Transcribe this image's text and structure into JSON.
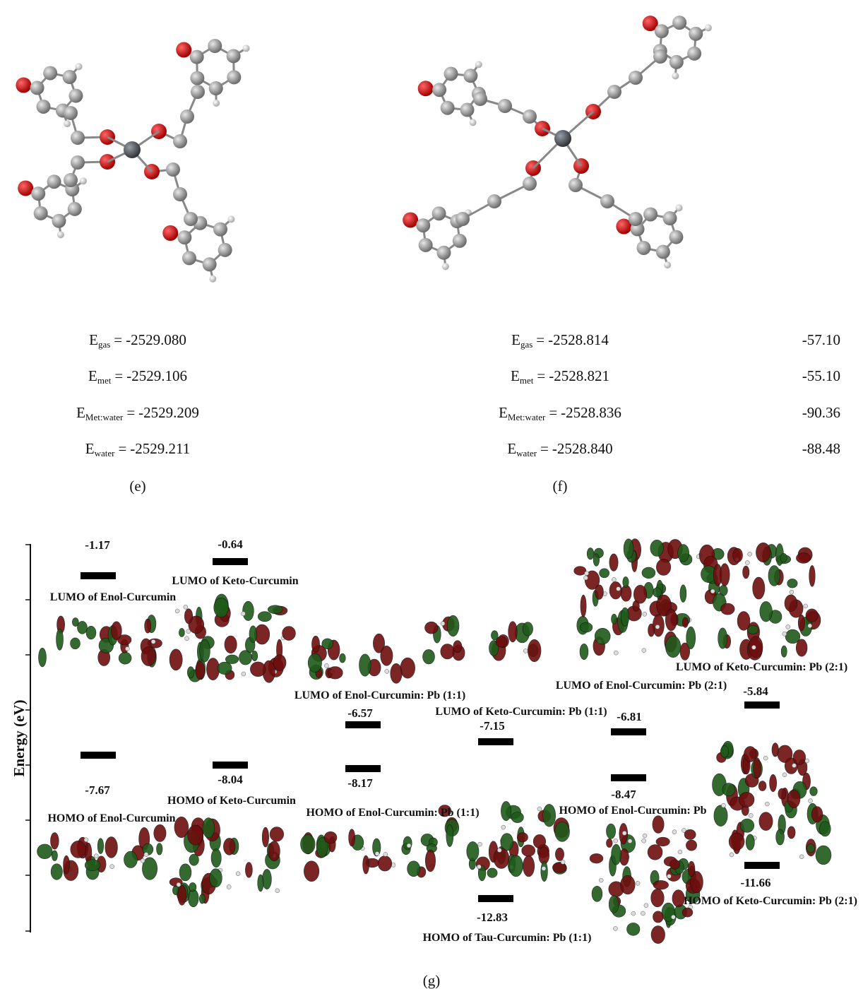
{
  "panel_e": {
    "energies": [
      {
        "label": "E",
        "subscript": "gas",
        "relation": "=",
        "value": "-2529.080"
      },
      {
        "label": "E",
        "subscript": "met",
        "relation": "=",
        "value": "-2529.106"
      },
      {
        "label": "E",
        "subscript": "Met:water",
        "relation": "=",
        "value": "-2529.209"
      },
      {
        "label": "E",
        "subscript": "water",
        "relation": "=",
        "value": "-2529.211"
      }
    ],
    "caption": "(e)"
  },
  "panel_f": {
    "energies": [
      {
        "label": "E",
        "subscript": "gas",
        "relation": "=",
        "value": "-2528.814",
        "extra": "-57.10"
      },
      {
        "label": "E",
        "subscript": "met",
        "relation": "=",
        "value": "-2528.821",
        "extra": "-55.10"
      },
      {
        "label": "E",
        "subscript": "Met:water",
        "relation": "=",
        "value": "-2528.836",
        "extra": "-90.36"
      },
      {
        "label": "E",
        "subscript": "water",
        "relation": "=",
        "value": "-2528.840",
        "extra": "-88.48"
      }
    ],
    "caption": "(f)"
  },
  "panel_g": {
    "axis_label": "Energy (eV)",
    "levels": [
      {
        "value": "-1.17",
        "label": "LUMO of Enol-Curcumin"
      },
      {
        "value": "-0.64",
        "label": "LUMO of Keto-Curcumin"
      },
      {
        "value": "-6.57",
        "label": "LUMO of Enol-Curcumin: Pb (1:1)"
      },
      {
        "value": "-7.15",
        "label": "LUMO of Keto-Curcumin: Pb (1:1)"
      },
      {
        "value": "-6.81",
        "label": "LUMO of Enol-Curcumin: Pb (2:1)"
      },
      {
        "value": "-5.84",
        "label": "LUMO of Keto-Curcumin: Pb (2:1)"
      },
      {
        "value": "-7.67",
        "label": "HOMO of Enol-Curcumin"
      },
      {
        "value": "-8.04",
        "label": "HOMO of Keto-Curcumin"
      },
      {
        "value": "-8.17",
        "label": "HOMO of Enol-Curcumin: Pb (1:1)"
      },
      {
        "value": "-12.83",
        "label": "HOMO of Tau-Curcumin: Pb (1:1)"
      },
      {
        "value": "-8.47",
        "label": "HOMO of Enol-Curcumin: Pb"
      },
      {
        "value": "-11.66",
        "label": "HOMO of Keto-Curcumin: Pb (2:1)"
      }
    ],
    "caption": "(g)"
  }
}
